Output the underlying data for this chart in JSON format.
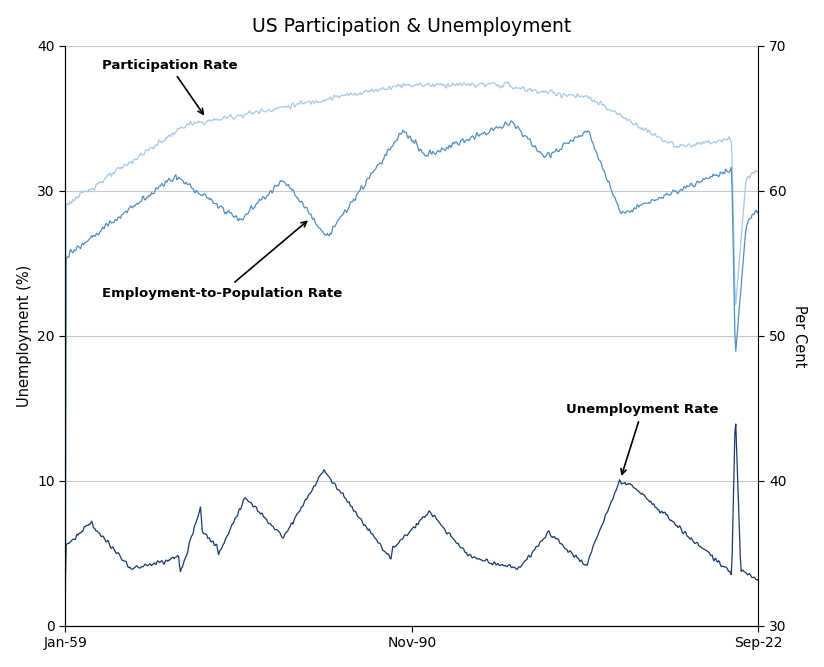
{
  "title": "US Participation & Unemployment",
  "ylabel_left": "Unemployment (%)",
  "ylabel_right": "Per Cent",
  "ylim_left": [
    0,
    40
  ],
  "ylim_right": [
    30,
    70
  ],
  "xtick_labels": [
    "Jan-59",
    "Nov-90",
    "Sep-22"
  ],
  "yticks_left": [
    0,
    10,
    20,
    30,
    40
  ],
  "yticks_right": [
    30,
    40,
    50,
    60,
    70
  ],
  "color_participation": "#A8C8E8",
  "color_employment": "#5090C0",
  "color_unemployment": "#1A3A6A",
  "background_color": "#FFFFFF",
  "grid_color": "#C8C8C8",
  "annotation_participation": "Participation Rate",
  "annotation_employment": "Employment-to-Population Rate",
  "annotation_unemployment": "Unemployment Rate"
}
